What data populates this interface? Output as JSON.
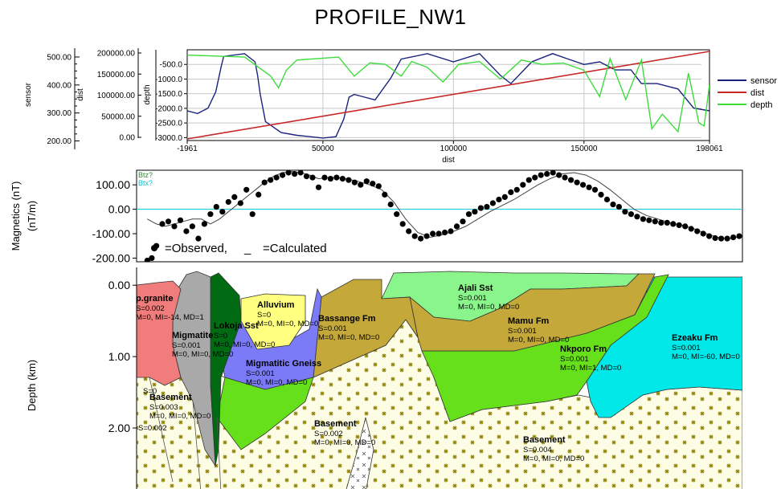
{
  "title": "PROFILE_NW1",
  "colors": {
    "sensor": "#1a237e",
    "dist": "#c62828",
    "depth": "#3ddc3d",
    "observed": "#000000",
    "calculated": "#444444",
    "baseline": "#00c8d8"
  },
  "chart_data": [
    {
      "type": "line",
      "name": "top",
      "axes": {
        "sensor": {
          "label": "sensor",
          "ticks": [
            "500.00",
            "400.00",
            "300.00",
            "200.00"
          ],
          "ylim": [
            170,
            520
          ]
        },
        "dist": {
          "label": "dist",
          "ticks": [
            "200000.00",
            "150000.00",
            "100000.00",
            "50000.00",
            "0.00"
          ],
          "ylim": [
            0,
            200000
          ]
        },
        "depth": {
          "label": "depth",
          "ticks": [
            "-500.0",
            "-1000.0",
            "-1500.0",
            "-2000.0",
            "-2500.0",
            "-3000.0"
          ],
          "ylim": [
            -3100,
            0
          ]
        }
      },
      "x_ticks": [
        "-1961",
        "50000",
        "100000",
        "150000",
        "198061"
      ],
      "xlabel": "dist",
      "xlim": [
        -1961,
        198061
      ],
      "legend": [
        "sensor",
        "dist",
        "depth"
      ],
      "legend_position": "right",
      "series": [
        {
          "name": "sensor",
          "x": [
            -1961,
            2000,
            6000,
            9000,
            11000,
            12000,
            20000,
            24000,
            25000,
            26000,
            28000,
            34000,
            40000,
            50000,
            55000,
            58000,
            60000,
            62000,
            66000,
            70000,
            76000,
            80000,
            90000,
            100000,
            110000,
            118000,
            122000,
            130000,
            138000,
            144000,
            150000,
            156000,
            162000,
            168000,
            172000,
            178000,
            186000,
            192000,
            198061
          ],
          "values": [
            290,
            280,
            300,
            360,
            450,
            490,
            500,
            470,
            420,
            350,
            250,
            210,
            200,
            190,
            195,
            260,
            340,
            350,
            340,
            330,
            410,
            480,
            500,
            470,
            500,
            420,
            390,
            470,
            500,
            480,
            460,
            470,
            440,
            440,
            390,
            390,
            370,
            300,
            290
          ]
        },
        {
          "name": "dist",
          "x": [
            -1961,
            198061
          ],
          "values": [
            0,
            200000
          ]
        },
        {
          "name": "depth",
          "x": [
            -1961,
            20000,
            30000,
            33000,
            36000,
            40000,
            48000,
            56000,
            62000,
            68000,
            74000,
            80000,
            84000,
            90000,
            96000,
            102000,
            110000,
            118000,
            126000,
            134000,
            142000,
            150000,
            156000,
            160000,
            166000,
            172000,
            176000,
            180000,
            186000,
            190000,
            194000,
            196000,
            198061
          ],
          "values": [
            -180,
            -250,
            -900,
            -1300,
            -700,
            -350,
            -300,
            -250,
            -900,
            -450,
            -500,
            -900,
            -400,
            -600,
            -1100,
            -500,
            -400,
            -1000,
            -350,
            -500,
            -450,
            -700,
            -1600,
            -300,
            -1700,
            -350,
            -2700,
            -2200,
            -2800,
            -800,
            -2500,
            -2600,
            -1200
          ]
        }
      ]
    },
    {
      "type": "scatter",
      "name": "magnetics",
      "ylabel": "Magnetics (nT)\n(nT/m)",
      "y_ticks": [
        "100.00",
        "0.00",
        "-100.00",
        "-200.00"
      ],
      "ylim": [
        -215,
        160
      ],
      "xlim": [
        -1961,
        198061
      ],
      "channels": [
        "Btz?",
        "Btx?"
      ],
      "legend_text": [
        "=Observed,",
        "_",
        "=Calculated"
      ],
      "series": [
        {
          "name": "Observed",
          "x": [
            0,
            1500,
            3000,
            5000,
            7000,
            9000,
            11000,
            13000,
            15000,
            17000,
            19000,
            21000,
            23000,
            25000,
            27000,
            29000,
            31000,
            33000,
            35000,
            37000,
            39000,
            41000,
            43000,
            45000,
            47000,
            49000,
            51000,
            53000,
            55000,
            57000,
            59000,
            61000,
            63000,
            65000,
            67000,
            69000,
            71000,
            73000,
            75000,
            77000,
            79000,
            81000,
            83000,
            85000,
            87000,
            89000,
            91000,
            93000,
            95000,
            97000,
            99000,
            101000,
            103000,
            105000,
            107000,
            109000,
            111000,
            113000,
            115000,
            117000,
            119000,
            121000,
            123000,
            125000,
            127000,
            129000,
            131000,
            133000,
            135000,
            137000,
            139000,
            141000,
            143000,
            145000,
            147000,
            149000,
            151000,
            153000,
            155000,
            157000,
            159000,
            161000,
            163000,
            165000,
            167000,
            169000,
            171000,
            173000,
            175000,
            177000,
            179000,
            181000,
            183000,
            185000,
            187000,
            189000,
            191000,
            193000,
            195000,
            197000
          ],
          "values": [
            -210,
            -200,
            -150,
            -60,
            -50,
            -70,
            -45,
            -90,
            -70,
            -120,
            -60,
            -20,
            10,
            -10,
            30,
            50,
            25,
            80,
            -20,
            60,
            110,
            120,
            130,
            140,
            150,
            145,
            150,
            135,
            130,
            90,
            130,
            125,
            130,
            125,
            120,
            110,
            100,
            115,
            105,
            95,
            60,
            20,
            -20,
            -60,
            -90,
            -110,
            -120,
            -110,
            -100,
            -100,
            -95,
            -90,
            -70,
            -50,
            -20,
            -10,
            5,
            10,
            25,
            40,
            50,
            70,
            80,
            100,
            120,
            130,
            140,
            145,
            150,
            140,
            130,
            120,
            110,
            100,
            90,
            80,
            60,
            40,
            20,
            10,
            -10,
            -20,
            -30,
            -40,
            -45,
            -50,
            -55,
            -55,
            -60,
            -65,
            -70,
            -80,
            -90,
            -100,
            -110,
            -118,
            -120,
            -120,
            -115,
            -110
          ]
        },
        {
          "name": "Calculated",
          "x": [
            0,
            3000,
            6000,
            9000,
            12000,
            15000,
            18000,
            21000,
            24000,
            27000,
            30000,
            33000,
            36000,
            39000,
            42000,
            45000,
            48000,
            51000,
            54000,
            57000,
            60000,
            63000,
            66000,
            70000,
            74000,
            78000,
            82000,
            86000,
            90000,
            94000,
            98000,
            102000,
            106000,
            110000,
            114000,
            118000,
            122000,
            126000,
            130000,
            134000,
            138000,
            142000,
            146000,
            150000,
            154000,
            158000,
            162000,
            166000,
            170000,
            174000,
            178000,
            182000,
            186000,
            190000,
            194000,
            198000
          ],
          "values": [
            -40,
            -60,
            -70,
            -60,
            -50,
            -40,
            -40,
            -60,
            -40,
            -10,
            20,
            50,
            80,
            110,
            135,
            150,
            155,
            150,
            140,
            125,
            130,
            130,
            125,
            115,
            100,
            80,
            30,
            -40,
            -95,
            -115,
            -105,
            -90,
            -70,
            -40,
            -10,
            15,
            40,
            70,
            100,
            125,
            145,
            150,
            140,
            115,
            80,
            40,
            0,
            -25,
            -40,
            -55,
            -65,
            -80,
            -100,
            -115,
            -120,
            -110
          ]
        }
      ]
    },
    {
      "type": "cross-section",
      "name": "geology",
      "ylabel": "Depth (km)",
      "y_ticks": [
        "0.00",
        "1.00",
        "2.00"
      ],
      "ylim": [
        -0.25,
        2.9
      ],
      "xlim": [
        -1961,
        198061
      ],
      "units": [
        {
          "name": "p.granite",
          "props": [
            "S=0.002",
            "M=0, MI=-14, MD=1"
          ],
          "color": "#f07c7c"
        },
        {
          "name": "Migmatite",
          "props": [
            "S=0.001",
            "M=0, MI=0, MD=0"
          ],
          "color": "#a9a9a9"
        },
        {
          "name": "Lokoja Sst",
          "props": [
            "S=0",
            "M=0, MI=0, MD=0"
          ],
          "color": "#006b12"
        },
        {
          "name": "Alluvium",
          "props": [
            "S=0",
            "M=0, MI=0, MD=0"
          ],
          "color": "#ffff80"
        },
        {
          "name": "Migmatitic Gneiss",
          "props": [
            "S=0.001",
            "M=0, MI=0, MD=0"
          ],
          "color": "#7b7bf7"
        },
        {
          "name": "Bassange Fm",
          "props": [
            "S=0.001",
            "M=0, MI=0, MD=0"
          ],
          "color": "#c5a83a"
        },
        {
          "name": "Ajali Sst",
          "props": [
            "S=0.001",
            "M=0, MI=0, MD=0"
          ],
          "color": "#8af58a"
        },
        {
          "name": "Mamu Fm",
          "props": [
            "S=0.001",
            "M=0, MI=0, MD=0"
          ],
          "color": "#c5a83a"
        },
        {
          "name": "Nkporo Fm",
          "props": [
            "S=0.001",
            "M=0, MI=1, MD=0"
          ],
          "color": "#66e01a"
        },
        {
          "name": "Ezeaku Fm",
          "props": [
            "S=0.001",
            "M=0, MI=-60, MD=0"
          ],
          "color": "#00e8e8"
        },
        {
          "name": "Basement",
          "props": [
            "S=0.003",
            "M=0, MI=0, MD=0"
          ],
          "color": "#fdfde6"
        },
        {
          "name": "Basement",
          "props": [
            "S=0.002",
            "M=0, MI=0, MD=0"
          ],
          "color": "#fdfde6"
        },
        {
          "name": "Basement",
          "props": [
            "S=0.004",
            "M=0, MI=0, MD=0"
          ],
          "color": "#fdfde6"
        }
      ],
      "fragments": [
        "S=0",
        "S=0.002"
      ]
    }
  ]
}
